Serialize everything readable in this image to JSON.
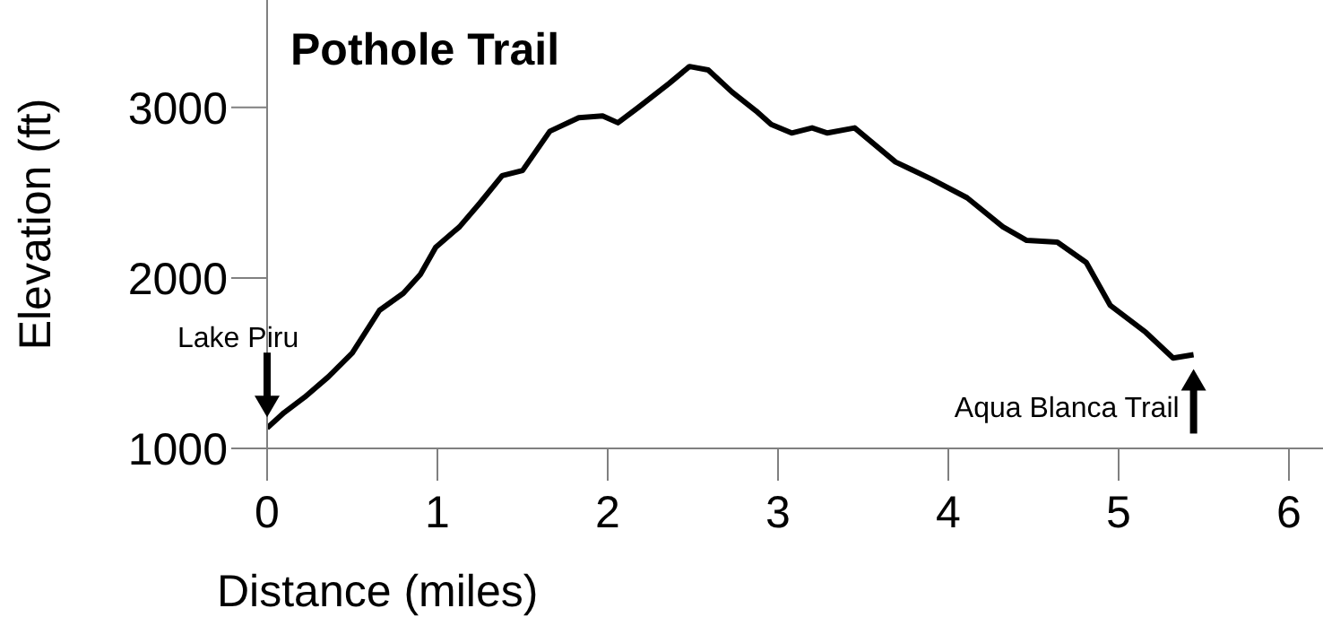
{
  "chart_data": {
    "type": "line",
    "title": "Pothole Trail",
    "xlabel": "Distance (miles)",
    "ylabel": "Elevation (ft)",
    "x": [
      0,
      0.1,
      0.22,
      0.36,
      0.5,
      0.66,
      0.8,
      0.9,
      0.99,
      1.13,
      1.25,
      1.38,
      1.5,
      1.66,
      1.83,
      1.97,
      2.06,
      2.18,
      2.36,
      2.48,
      2.59,
      2.73,
      2.87,
      2.96,
      3.08,
      3.2,
      3.29,
      3.45,
      3.69,
      3.9,
      4.11,
      4.32,
      4.46,
      4.64,
      4.81,
      4.95,
      5.16,
      5.32,
      5.44
    ],
    "series": [
      {
        "color": "#000000",
        "values": [
          1120,
          1210,
          1300,
          1420,
          1560,
          1810,
          1910,
          2020,
          2180,
          2300,
          2440,
          2600,
          2630,
          2860,
          2940,
          2950,
          2910,
          3000,
          3140,
          3240,
          3220,
          3090,
          2980,
          2900,
          2850,
          2880,
          2850,
          2880,
          2680,
          2580,
          2470,
          2300,
          2220,
          2210,
          2090,
          1840,
          1680,
          1530,
          1550
        ]
      }
    ],
    "xlim": [
      0,
      6.2
    ],
    "xticks": [
      0,
      1,
      2,
      3,
      4,
      5,
      6
    ],
    "ylim": [
      1000,
      3630
    ],
    "yticks": [
      1000,
      2000,
      3000
    ],
    "grid": false,
    "legend": false,
    "marker": "none",
    "line_style": "solid",
    "annotations": [
      {
        "text": "Lake Piru",
        "x": 0,
        "y": 1120
      },
      {
        "text": "Aqua Blanca Trail",
        "x": 5.44,
        "y": 1550
      }
    ]
  }
}
